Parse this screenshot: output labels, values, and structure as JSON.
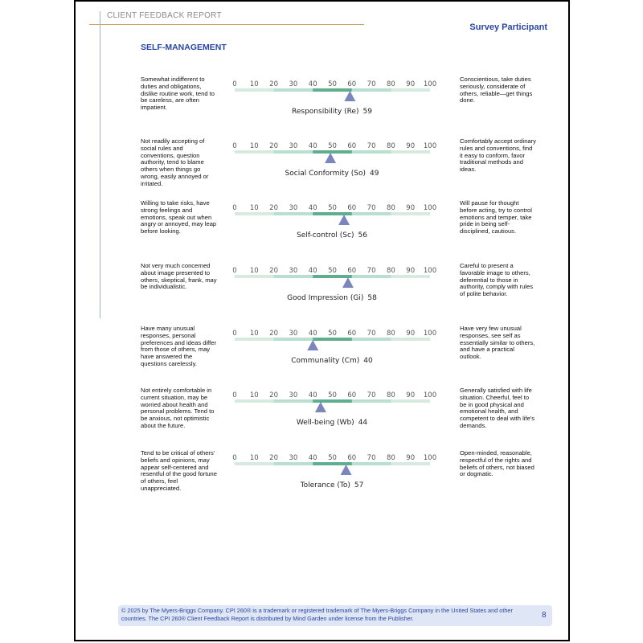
{
  "header": {
    "report_title": "CLIENT FEEDBACK REPORT",
    "participant": "Survey Participant"
  },
  "section": {
    "title": "SELF-MANAGEMENT"
  },
  "scale": {
    "ticks": [
      "0",
      "10",
      "20",
      "30",
      "40",
      "50",
      "60",
      "70",
      "80",
      "90",
      "100"
    ]
  },
  "chart_data": {
    "type": "bar",
    "title": "SELF-MANAGEMENT",
    "categories": [
      "Responsibility (Re)",
      "Social Conformity (So)",
      "Self-control (Sc)",
      "Good Impression (Gi)",
      "Communality (Cm)",
      "Well-being (Wb)",
      "Tolerance (To)"
    ],
    "values": [
      59,
      49,
      56,
      58,
      40,
      44,
      57
    ],
    "xlim": [
      0,
      100
    ],
    "colors": {
      "marker": "#7b86bf",
      "band_light": "#b8dfcf",
      "band_dark": "#5fae8f",
      "track": "#d7eadf"
    }
  },
  "scales": [
    {
      "left": "Somewhat indifferent to duties and obligations, dislike routine work, tend to be careless, are often impatient.",
      "right": "Conscientious, take duties seriously, considerate of others, reliable—get things done.",
      "label": "Responsibility (Re)",
      "score": "59"
    },
    {
      "left": "Not readily accepting of social rules and conventions, question authority, tend to blame others when things go wrong, easily annoyed or irritated.",
      "right": "Comfortably accept ordinary rules and conventions, find it easy to conform, favor traditional methods and ideas.",
      "label": "Social Conformity (So)",
      "score": "49"
    },
    {
      "left": "Willing to take risks, have strong feelings and emotions, speak out when angry or annoyed, may leap before looking.",
      "right": "Will pause for thought before acting, try to control emotions and temper, take pride in being self-disciplined, cautious.",
      "label": "Self-control (Sc)",
      "score": "56"
    },
    {
      "left": "Not very much concerned about image presented to others, skeptical, frank, may be individualistic.",
      "right": "Careful to present a favorable image to others, deferential to those in authority, comply with rules of polite behavior.",
      "label": "Good Impression (Gi)",
      "score": "58"
    },
    {
      "left": "Have many unusual responses, personal preferences and ideas differ from those of others, may have answered the questions carelessly.",
      "right": "Have very few unusual responses, see self as essentially similar to others, and have a practical outlook.",
      "label": "Communality (Cm)",
      "score": "40"
    },
    {
      "left": "Not entirely comfortable in current situation, may be worried about health and personal problems. Tend to be anxious, not optimistic about the future.",
      "right": "Generally satisfied with life situation. Cheerful, feel to be in good physical and emotional health, and competent to deal with life's demands.",
      "label": "Well-being (Wb)",
      "score": "44"
    },
    {
      "left": "Tend to be critical of others' beliefs and opinions, may appear self-centered and resentful of the good fortune of others, feel unappreciated.",
      "right": "Open-minded, reasonable, respectful of the rights and beliefs of others, not biased or dogmatic.",
      "label": "Tolerance (To)",
      "score": "57"
    }
  ],
  "footer": {
    "text": "© 2025 by The Myers-Briggs Company. CPI 260® is a trademark or registered trademark of The Myers-Briggs Company in the United States and other countries. The CPI 260® Client Feedback Report is distributed by Mind Garden under license from the Publisher.",
    "page_number": "8"
  }
}
